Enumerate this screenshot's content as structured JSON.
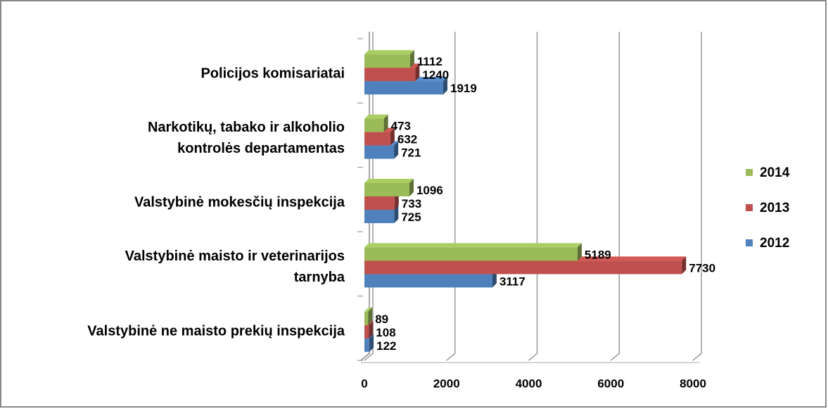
{
  "chart_data": {
    "type": "bar3d_horizontal",
    "categories": [
      "Policijos komisariatai",
      "Narkotikų, tabako ir alkoholio\nkontrolės departamentas",
      "Valstybinė mokesčių inspekcija",
      "Valstybinė maisto ir veterinarijos\ntarnyba",
      "Valstybinė ne maisto prekių inspekcija"
    ],
    "series": [
      {
        "name": "2012",
        "color": "#4f81bd",
        "values": [
          1919,
          721,
          725,
          3117,
          122
        ]
      },
      {
        "name": "2013",
        "color": "#c0504d",
        "values": [
          1240,
          632,
          733,
          7730,
          108
        ]
      },
      {
        "name": "2014",
        "color": "#9bbb59",
        "values": [
          1112,
          473,
          1096,
          5189,
          89
        ]
      }
    ],
    "xlim": [
      0,
      8000
    ],
    "xticks": [
      0,
      2000,
      4000,
      6000,
      8000
    ],
    "grid": true,
    "legend": "right"
  }
}
